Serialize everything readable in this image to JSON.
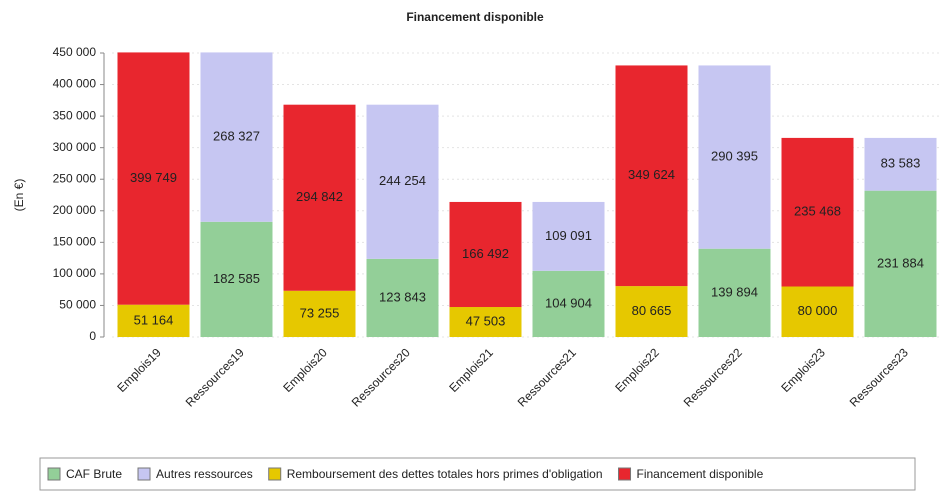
{
  "chart_data": {
    "type": "stacked_bar",
    "title": "Financement disponible",
    "y_label": "(En €)",
    "categories": [
      "Emplois19",
      "Ressources19",
      "Emplois20",
      "Ressources20",
      "Emplois21",
      "Ressources21",
      "Emplois22",
      "Ressources22",
      "Emplois23",
      "Ressources23"
    ],
    "series": [
      {
        "name": "CAF Brute",
        "color": "#93cf98",
        "values": [
          null,
          182585,
          null,
          123843,
          null,
          104904,
          null,
          139894,
          null,
          231884
        ],
        "value_labels": [
          null,
          "182 585",
          null,
          "123 843",
          null,
          "104 904",
          null,
          "139 894",
          null,
          "231 884"
        ]
      },
      {
        "name": "Autres ressources",
        "color": "#c6c6f2",
        "values": [
          null,
          268327,
          null,
          244254,
          null,
          109091,
          null,
          290395,
          null,
          83583
        ],
        "value_labels": [
          null,
          "268 327",
          null,
          "244 254",
          null,
          "109 091",
          null,
          "290 395",
          null,
          "83 583"
        ]
      },
      {
        "name": "Remboursement des dettes totales hors primes d'obligation",
        "color": "#e6c800",
        "values": [
          51164,
          null,
          73255,
          null,
          47503,
          null,
          80665,
          null,
          80000,
          null
        ],
        "value_labels": [
          "51 164",
          null,
          "73 255",
          null,
          "47 503",
          null,
          "80 665",
          null,
          "80 000",
          null
        ]
      },
      {
        "name": "Financement disponible",
        "color": "#e8262e",
        "values": [
          399749,
          null,
          294842,
          null,
          166492,
          null,
          349624,
          null,
          235468,
          null
        ],
        "value_labels": [
          "399 749",
          null,
          "294 842",
          null,
          "166 492",
          null,
          "349 624",
          null,
          "235 468",
          null
        ]
      }
    ],
    "ylim": [
      0,
      450000
    ],
    "yticks": [
      {
        "value": 0,
        "label": "0"
      },
      {
        "value": 50000,
        "label": "50 000"
      },
      {
        "value": 100000,
        "label": "100 000"
      },
      {
        "value": 150000,
        "label": "150 000"
      },
      {
        "value": 200000,
        "label": "200 000"
      },
      {
        "value": 250000,
        "label": "250 000"
      },
      {
        "value": 300000,
        "label": "300 000"
      },
      {
        "value": 350000,
        "label": "350 000"
      },
      {
        "value": 400000,
        "label": "400 000"
      },
      {
        "value": 450000,
        "label": "450 000"
      }
    ],
    "grid": true,
    "legend": "bottom"
  }
}
